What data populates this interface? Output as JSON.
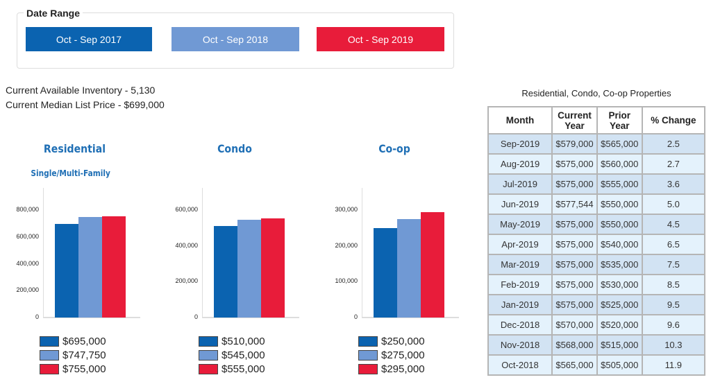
{
  "date_range": {
    "title": "Date Range",
    "buttons": [
      {
        "label": "Oct - Sep 2017",
        "color": "#0b63b0"
      },
      {
        "label": "Oct - Sep 2018",
        "color": "#7099d4"
      },
      {
        "label": "Oct - Sep 2019",
        "color": "#e81c3a"
      }
    ]
  },
  "info": {
    "inventory": "Current Available Inventory - 5,130",
    "median_price": "Current Median List Price - $699,000"
  },
  "chart_data": [
    {
      "type": "bar",
      "title": "Residential",
      "subtitle": "Single/Multi-Family",
      "ylim": [
        0,
        960000
      ],
      "ticks": [
        "0",
        "200,000",
        "400,000",
        "600,000",
        "800,000"
      ],
      "tick_values": [
        0,
        200000,
        400000,
        600000,
        800000
      ],
      "values": [
        695000,
        747750,
        755000
      ],
      "labels": [
        "$695,000",
        "$747,750",
        "$755,000"
      ],
      "colors": [
        "#0b63b0",
        "#7099d4",
        "#e81c3a"
      ]
    },
    {
      "type": "bar",
      "title": "Condo",
      "ylim": [
        0,
        720000
      ],
      "ticks": [
        "0",
        "200,000",
        "400,000",
        "600,000"
      ],
      "tick_values": [
        0,
        200000,
        400000,
        600000
      ],
      "values": [
        510000,
        545000,
        555000
      ],
      "labels": [
        "$510,000",
        "$545,000",
        "$555,000"
      ],
      "colors": [
        "#0b63b0",
        "#7099d4",
        "#e81c3a"
      ]
    },
    {
      "type": "bar",
      "title": "Co-op",
      "ylim": [
        0,
        360000
      ],
      "ticks": [
        "0",
        "100,000",
        "200,000",
        "300,000"
      ],
      "tick_values": [
        0,
        100000,
        200000,
        300000
      ],
      "values": [
        250000,
        275000,
        295000
      ],
      "labels": [
        "$250,000",
        "$275,000",
        "$295,000"
      ],
      "colors": [
        "#0b63b0",
        "#7099d4",
        "#e81c3a"
      ]
    }
  ],
  "table": {
    "title": "Residential, Condo, Co-op Properties",
    "headers": [
      "Month",
      "Current Year",
      "Prior Year",
      "% Change"
    ],
    "rows": [
      [
        "Sep-2019",
        "$579,000",
        "$565,000",
        "2.5"
      ],
      [
        "Aug-2019",
        "$575,000",
        "$560,000",
        "2.7"
      ],
      [
        "Jul-2019",
        "$575,000",
        "$555,000",
        "3.6"
      ],
      [
        "Jun-2019",
        "$577,544",
        "$550,000",
        "5.0"
      ],
      [
        "May-2019",
        "$575,000",
        "$550,000",
        "4.5"
      ],
      [
        "Apr-2019",
        "$575,000",
        "$540,000",
        "6.5"
      ],
      [
        "Mar-2019",
        "$575,000",
        "$535,000",
        "7.5"
      ],
      [
        "Feb-2019",
        "$575,000",
        "$530,000",
        "8.5"
      ],
      [
        "Jan-2019",
        "$575,000",
        "$525,000",
        "9.5"
      ],
      [
        "Dec-2018",
        "$570,000",
        "$520,000",
        "9.6"
      ],
      [
        "Nov-2018",
        "$568,000",
        "$515,000",
        "10.3"
      ],
      [
        "Oct-2018",
        "$565,000",
        "$505,000",
        "11.9"
      ]
    ]
  }
}
